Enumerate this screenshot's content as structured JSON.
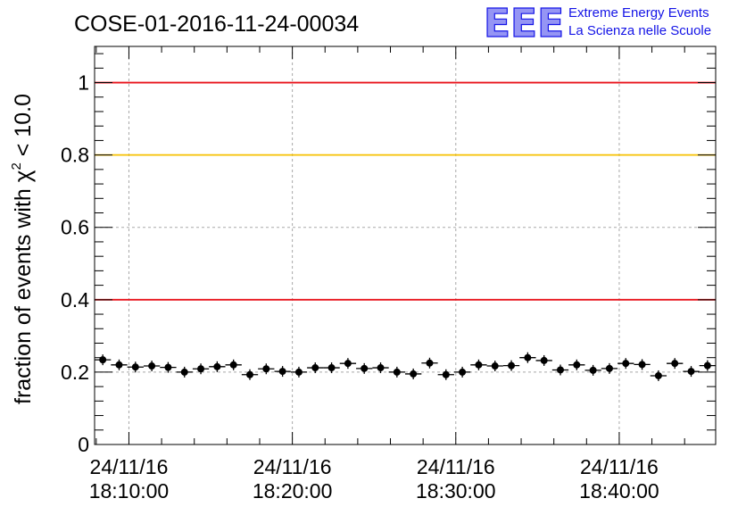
{
  "chart_data": {
    "type": "scatter",
    "title": "COSE-01-2016-11-24-00034",
    "ylabel": "fraction of events with",
    "ylabel_symbol": "χ",
    "ylabel_sup": "2",
    "ylabel_tail": "< 10.0",
    "ylim": [
      0,
      1.1
    ],
    "yticks": [
      "0",
      "0.2",
      "0.4",
      "0.6",
      "0.8",
      "1"
    ],
    "xticks": [
      {
        "date": "24/11/16",
        "time": "18:10:00"
      },
      {
        "date": "24/11/16",
        "time": "18:20:00"
      },
      {
        "date": "24/11/16",
        "time": "18:30:00"
      },
      {
        "date": "24/11/16",
        "time": "18:40:00"
      }
    ],
    "grid": true,
    "reference_lines": [
      {
        "value": 1.0,
        "color": "#e8141c"
      },
      {
        "value": 0.8,
        "color": "#f6c000"
      },
      {
        "value": 0.4,
        "color": "#e8141c"
      }
    ],
    "points": [
      {
        "t": "18:08:24",
        "y": 0.234
      },
      {
        "t": "18:09:24",
        "y": 0.22
      },
      {
        "t": "18:10:24",
        "y": 0.214
      },
      {
        "t": "18:11:24",
        "y": 0.217
      },
      {
        "t": "18:12:24",
        "y": 0.213
      },
      {
        "t": "18:13:24",
        "y": 0.2
      },
      {
        "t": "18:14:24",
        "y": 0.209
      },
      {
        "t": "18:15:24",
        "y": 0.215
      },
      {
        "t": "18:16:24",
        "y": 0.22
      },
      {
        "t": "18:17:24",
        "y": 0.193
      },
      {
        "t": "18:18:24",
        "y": 0.209
      },
      {
        "t": "18:19:24",
        "y": 0.202
      },
      {
        "t": "18:20:24",
        "y": 0.2
      },
      {
        "t": "18:21:24",
        "y": 0.212
      },
      {
        "t": "18:22:24",
        "y": 0.212
      },
      {
        "t": "18:23:24",
        "y": 0.224
      },
      {
        "t": "18:24:24",
        "y": 0.21
      },
      {
        "t": "18:25:24",
        "y": 0.212
      },
      {
        "t": "18:26:24",
        "y": 0.2
      },
      {
        "t": "18:27:24",
        "y": 0.195
      },
      {
        "t": "18:28:24",
        "y": 0.225
      },
      {
        "t": "18:29:24",
        "y": 0.193
      },
      {
        "t": "18:30:24",
        "y": 0.2
      },
      {
        "t": "18:31:24",
        "y": 0.22
      },
      {
        "t": "18:32:24",
        "y": 0.217
      },
      {
        "t": "18:33:24",
        "y": 0.218
      },
      {
        "t": "18:34:24",
        "y": 0.24
      },
      {
        "t": "18:35:24",
        "y": 0.232
      },
      {
        "t": "18:36:24",
        "y": 0.206
      },
      {
        "t": "18:37:24",
        "y": 0.22
      },
      {
        "t": "18:38:24",
        "y": 0.205
      },
      {
        "t": "18:39:24",
        "y": 0.21
      },
      {
        "t": "18:40:24",
        "y": 0.224
      },
      {
        "t": "18:41:24",
        "y": 0.221
      },
      {
        "t": "18:42:24",
        "y": 0.19
      },
      {
        "t": "18:43:24",
        "y": 0.224
      },
      {
        "t": "18:44:24",
        "y": 0.202
      },
      {
        "t": "18:45:24",
        "y": 0.218
      }
    ]
  },
  "logo": {
    "mark": "EEE",
    "line1": "Extreme Energy Events",
    "line2": "La Scienza nelle Scuole",
    "color": "#1414e6"
  }
}
